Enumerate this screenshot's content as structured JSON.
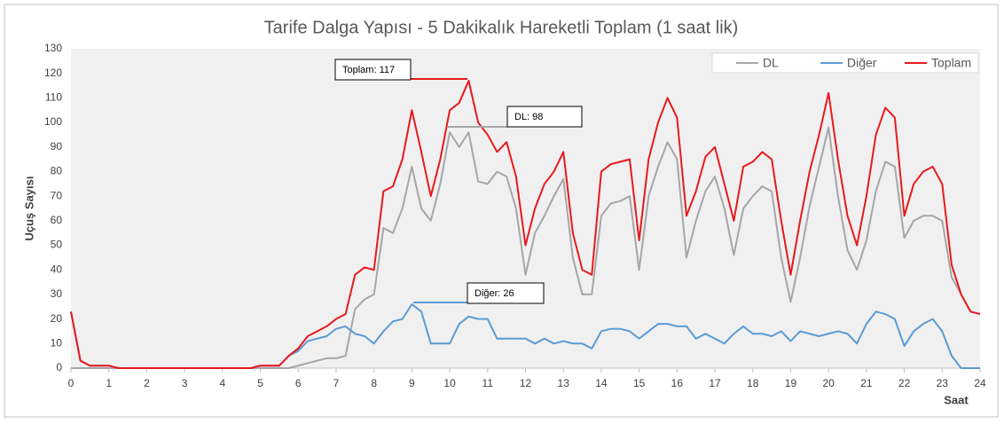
{
  "chart_data": {
    "type": "line",
    "title": "Tarife Dalga Yapısı - 5 Dakikalık Hareketli Toplam (1 saat lik)",
    "xlabel": "Saat",
    "ylabel": "Uçuş Sayısı",
    "x": [
      0,
      0.25,
      0.5,
      0.75,
      1,
      1.25,
      1.5,
      1.75,
      2,
      2.25,
      2.5,
      2.75,
      3,
      3.25,
      3.5,
      3.75,
      4,
      4.25,
      4.5,
      4.75,
      5,
      5.25,
      5.5,
      5.75,
      6,
      6.25,
      6.5,
      6.75,
      7,
      7.25,
      7.5,
      7.75,
      8,
      8.25,
      8.5,
      8.75,
      9,
      9.25,
      9.5,
      9.75,
      10,
      10.25,
      10.5,
      10.75,
      11,
      11.25,
      11.5,
      11.75,
      12,
      12.25,
      12.5,
      12.75,
      13,
      13.25,
      13.5,
      13.75,
      14,
      14.25,
      14.5,
      14.75,
      15,
      15.25,
      15.5,
      15.75,
      16,
      16.25,
      16.5,
      16.75,
      17,
      17.25,
      17.5,
      17.75,
      18,
      18.25,
      18.5,
      18.75,
      19,
      19.25,
      19.5,
      19.75,
      20,
      20.25,
      20.5,
      20.75,
      21,
      21.25,
      21.5,
      21.75,
      22,
      22.25,
      22.5,
      22.75,
      23,
      23.25,
      23.5,
      23.75,
      24
    ],
    "series": [
      {
        "name": "DL",
        "color": "#a6a6a6",
        "values": [
          0,
          0,
          0,
          0,
          0,
          0,
          0,
          0,
          0,
          0,
          0,
          0,
          0,
          0,
          0,
          0,
          0,
          0,
          0,
          0,
          0,
          0,
          0,
          0,
          1,
          2,
          3,
          4,
          4,
          5,
          24,
          28,
          30,
          57,
          55,
          65,
          82,
          65,
          60,
          75,
          96,
          90,
          96,
          76,
          75,
          80,
          78,
          65,
          38,
          55,
          62,
          70,
          77,
          45,
          30,
          30,
          62,
          67,
          68,
          70,
          40,
          70,
          82,
          92,
          85,
          45,
          60,
          72,
          78,
          65,
          46,
          65,
          70,
          74,
          72,
          45,
          27,
          45,
          66,
          82,
          98,
          70,
          48,
          40,
          52,
          72,
          84,
          82,
          53,
          60,
          62,
          62,
          60,
          37,
          30,
          23,
          22
        ]
      },
      {
        "name": "Diğer",
        "color": "#5b9bd5",
        "values": [
          23,
          3,
          1,
          1,
          1,
          0,
          0,
          0,
          0,
          0,
          0,
          0,
          0,
          0,
          0,
          0,
          0,
          0,
          0,
          0,
          1,
          1,
          1,
          5,
          7,
          11,
          12,
          13,
          16,
          17,
          14,
          13,
          10,
          15,
          19,
          20,
          26,
          23,
          10,
          10,
          10,
          18,
          21,
          20,
          20,
          12,
          12,
          12,
          12,
          10,
          12,
          10,
          11,
          10,
          10,
          8,
          15,
          16,
          16,
          15,
          12,
          15,
          18,
          18,
          17,
          17,
          12,
          14,
          12,
          10,
          14,
          17,
          14,
          14,
          13,
          15,
          11,
          15,
          14,
          13,
          14,
          15,
          14,
          10,
          18,
          23,
          22,
          20,
          9,
          15,
          18,
          20,
          15,
          5,
          0,
          0,
          0
        ]
      },
      {
        "name": "Toplam",
        "color": "#e8191d",
        "values": [
          23,
          3,
          1,
          1,
          1,
          0,
          0,
          0,
          0,
          0,
          0,
          0,
          0,
          0,
          0,
          0,
          0,
          0,
          0,
          0,
          1,
          1,
          1,
          5,
          8,
          13,
          15,
          17,
          20,
          22,
          38,
          41,
          40,
          72,
          74,
          85,
          105,
          88,
          70,
          85,
          105,
          108,
          117,
          100,
          95,
          88,
          92,
          78,
          50,
          65,
          75,
          80,
          88,
          55,
          40,
          38,
          80,
          83,
          84,
          85,
          52,
          85,
          100,
          110,
          102,
          62,
          72,
          86,
          90,
          75,
          60,
          82,
          84,
          88,
          85,
          60,
          38,
          60,
          80,
          95,
          112,
          85,
          62,
          50,
          70,
          95,
          106,
          102,
          62,
          75,
          80,
          82,
          75,
          42,
          30,
          23,
          22
        ]
      }
    ],
    "annotations": [
      "Toplam: 117",
      "DL: 98",
      "Diğer: 26"
    ],
    "xlim": [
      0,
      24
    ],
    "xticks": [
      0,
      1,
      2,
      3,
      4,
      5,
      6,
      7,
      8,
      9,
      10,
      11,
      12,
      13,
      14,
      15,
      16,
      17,
      18,
      19,
      20,
      21,
      22,
      23,
      24
    ],
    "ylim": [
      0,
      130
    ],
    "yticks": [
      0,
      10,
      20,
      30,
      40,
      50,
      60,
      70,
      80,
      90,
      100,
      110,
      120,
      130
    ],
    "grid": false,
    "legend": "top-right"
  }
}
